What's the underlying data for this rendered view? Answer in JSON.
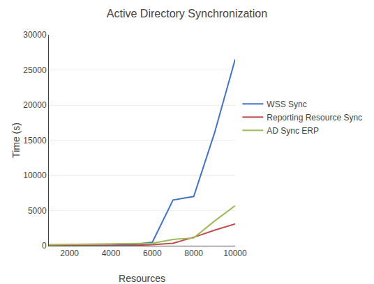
{
  "chart_data": {
    "type": "line",
    "title": "Active Directory Synchronization",
    "x_label": "Resources",
    "y_label": "Time (s)",
    "x": [
      1000,
      2000,
      3000,
      4000,
      5000,
      6000,
      7000,
      8000,
      9000,
      10000
    ],
    "series": [
      {
        "name": "WSS Sync",
        "color": "#4472c4",
        "values": [
          10,
          20,
          40,
          80,
          150,
          500,
          6500,
          7000,
          16000,
          26500
        ]
      },
      {
        "name": "Reporting Resource Sync",
        "color": "#c0504d",
        "values": [
          5,
          8,
          12,
          20,
          40,
          150,
          350,
          1200,
          2200,
          3100
        ]
      },
      {
        "name": "AD Sync ERP",
        "color": "#9bbb59",
        "values": [
          150,
          180,
          200,
          220,
          260,
          350,
          900,
          1100,
          3500,
          5700
        ]
      }
    ],
    "xlim": [
      1000,
      10000
    ],
    "xticks": [
      2000,
      4000,
      6000,
      8000,
      10000
    ],
    "ylim": [
      0,
      30000
    ],
    "yticks": [
      0,
      5000,
      10000,
      15000,
      20000,
      25000,
      30000
    ],
    "grid": "y",
    "legend": "right"
  }
}
